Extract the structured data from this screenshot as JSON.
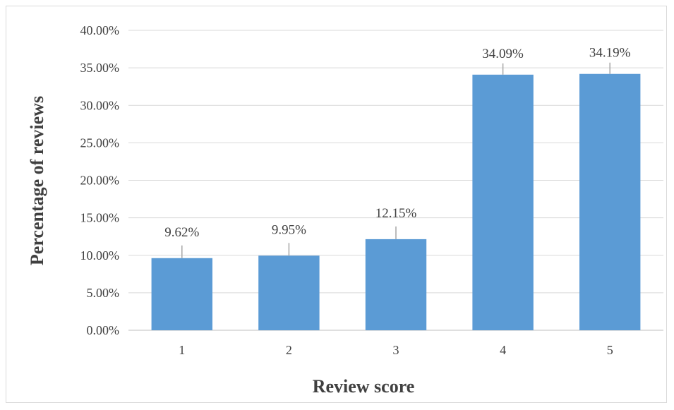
{
  "chart_data": {
    "type": "bar",
    "title": "",
    "xlabel": "Review score",
    "ylabel": "Percentage of reviews",
    "categories": [
      "1",
      "2",
      "3",
      "4",
      "5"
    ],
    "values": [
      9.62,
      9.95,
      12.15,
      34.09,
      34.19
    ],
    "data_labels": [
      "9.62%",
      "9.95%",
      "12.15%",
      "34.09%",
      "34.19%"
    ],
    "ylim": [
      0,
      40
    ],
    "yticks": [
      0,
      5,
      10,
      15,
      20,
      25,
      30,
      35,
      40
    ],
    "ytick_labels": [
      "0.00%",
      "5.00%",
      "10.00%",
      "15.00%",
      "20.00%",
      "25.00%",
      "30.00%",
      "35.00%",
      "40.00%"
    ],
    "grid": true,
    "legend": "none",
    "colors": {
      "bar": "#5b9bd5",
      "grid": "#d9d9d9",
      "axis": "#bfbfbf",
      "leader": "#a6a6a6",
      "text": "#404040"
    }
  }
}
